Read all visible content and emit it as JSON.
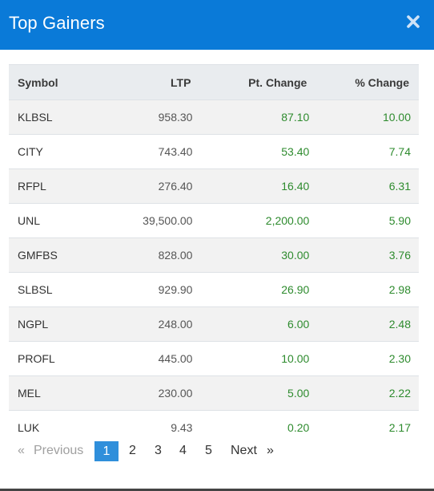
{
  "modal": {
    "title": "Top Gainers",
    "close_icon": "close-icon"
  },
  "table": {
    "headers": [
      "Symbol",
      "LTP",
      "Pt. Change",
      "% Change"
    ],
    "rows": [
      {
        "symbol": "KLBSL",
        "ltp": "958.30",
        "pt_change": "87.10",
        "pct_change": "10.00"
      },
      {
        "symbol": "CITY",
        "ltp": "743.40",
        "pt_change": "53.40",
        "pct_change": "7.74"
      },
      {
        "symbol": "RFPL",
        "ltp": "276.40",
        "pt_change": "16.40",
        "pct_change": "6.31"
      },
      {
        "symbol": "UNL",
        "ltp": "39,500.00",
        "pt_change": "2,200.00",
        "pct_change": "5.90"
      },
      {
        "symbol": "GMFBS",
        "ltp": "828.00",
        "pt_change": "30.00",
        "pct_change": "3.76"
      },
      {
        "symbol": "SLBSL",
        "ltp": "929.90",
        "pt_change": "26.90",
        "pct_change": "2.98"
      },
      {
        "symbol": "NGPL",
        "ltp": "248.00",
        "pt_change": "6.00",
        "pct_change": "2.48"
      },
      {
        "symbol": "PROFL",
        "ltp": "445.00",
        "pt_change": "10.00",
        "pct_change": "2.30"
      },
      {
        "symbol": "MEL",
        "ltp": "230.00",
        "pt_change": "5.00",
        "pct_change": "2.22"
      },
      {
        "symbol": "LUK",
        "ltp": "9.43",
        "pt_change": "0.20",
        "pct_change": "2.17"
      }
    ]
  },
  "pagination": {
    "prev_symbol": "«",
    "prev_label": "Previous",
    "pages": [
      "1",
      "2",
      "3",
      "4",
      "5"
    ],
    "active_page": "1",
    "next_label": "Next",
    "next_symbol": "»"
  },
  "colors": {
    "header_bg": "#0a7ad8",
    "positive": "#2e8b2e",
    "active_page": "#2f8fdb"
  }
}
